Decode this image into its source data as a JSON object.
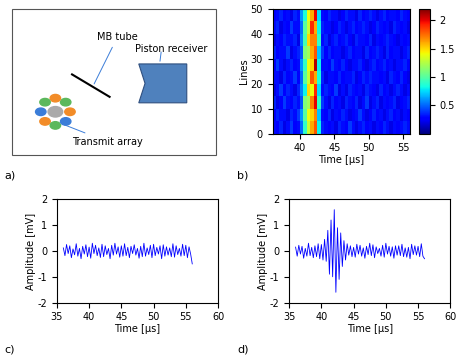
{
  "diagram": {
    "label": "a)",
    "texts": {
      "tube": "MB tube",
      "receiver": "Piston receiver",
      "array": "Transmit array"
    }
  },
  "chart_data": [
    {
      "type": "heatmap",
      "label": "b)",
      "xlabel": "Time [µs]",
      "ylabel": "Lines",
      "xlim": [
        36,
        56
      ],
      "xticks": [
        40,
        45,
        50,
        55
      ],
      "ylim": [
        0,
        50
      ],
      "yticks": [
        0,
        10,
        20,
        30,
        40,
        50
      ],
      "x_edges": [
        36,
        36.5,
        37,
        37.5,
        38,
        38.5,
        39,
        39.5,
        40,
        40.5,
        41,
        41.5,
        42,
        42.5,
        43,
        43.5,
        44,
        44.5,
        45,
        45.5,
        46,
        46.5,
        47,
        47.5,
        48,
        48.5,
        49,
        49.5,
        50,
        50.5,
        51,
        51.5,
        52,
        52.5,
        53,
        53.5,
        54,
        54.5,
        55,
        55.5,
        56
      ],
      "y_edges": [
        0,
        5,
        10,
        15,
        20,
        25,
        30,
        35,
        40,
        45,
        50
      ],
      "cells": [
        [
          0.3,
          0.25,
          0.35,
          0.2,
          0.3,
          0.4,
          0.25,
          0.3,
          0.5,
          0.9,
          1.3,
          1.6,
          1.8,
          0.8,
          0.35,
          0.3,
          0.25,
          0.3,
          0.2,
          0.35,
          0.3,
          0.25,
          0.4,
          0.3,
          0.2,
          0.3,
          0.35,
          0.25,
          0.3,
          0.2,
          0.3,
          0.25,
          0.35,
          0.3,
          0.2,
          0.3,
          0.25,
          0.3,
          0.35,
          0.3
        ],
        [
          0.25,
          0.35,
          0.3,
          0.3,
          0.2,
          0.35,
          0.3,
          0.4,
          0.6,
          1.0,
          1.4,
          1.5,
          1.7,
          0.7,
          0.3,
          0.25,
          0.35,
          0.2,
          0.3,
          0.25,
          0.35,
          0.3,
          0.2,
          0.25,
          0.3,
          0.4,
          0.3,
          0.2,
          0.25,
          0.35,
          0.25,
          0.3,
          0.2,
          0.3,
          0.35,
          0.25,
          0.3,
          0.2,
          0.3,
          0.25
        ],
        [
          0.35,
          0.2,
          0.25,
          0.4,
          0.3,
          0.25,
          0.35,
          0.3,
          0.45,
          1.1,
          1.2,
          1.7,
          2.0,
          0.9,
          0.4,
          0.3,
          0.2,
          0.35,
          0.25,
          0.3,
          0.2,
          0.35,
          0.3,
          0.25,
          0.35,
          0.2,
          0.3,
          0.4,
          0.2,
          0.3,
          0.35,
          0.2,
          0.3,
          0.25,
          0.3,
          0.35,
          0.2,
          0.25,
          0.3,
          0.35
        ],
        [
          0.2,
          0.3,
          0.4,
          0.25,
          0.35,
          0.3,
          0.2,
          0.35,
          0.55,
          0.8,
          1.5,
          1.4,
          1.9,
          0.75,
          0.3,
          0.35,
          0.3,
          0.25,
          0.4,
          0.2,
          0.3,
          0.2,
          0.35,
          0.3,
          0.25,
          0.3,
          0.2,
          0.35,
          0.3,
          0.25,
          0.2,
          0.35,
          0.25,
          0.3,
          0.2,
          0.3,
          0.35,
          0.3,
          0.2,
          0.3
        ],
        [
          0.3,
          0.3,
          0.2,
          0.35,
          0.25,
          0.3,
          0.4,
          0.25,
          0.5,
          1.0,
          1.3,
          1.8,
          1.6,
          0.85,
          0.35,
          0.2,
          0.3,
          0.3,
          0.25,
          0.35,
          0.25,
          0.3,
          0.3,
          0.35,
          0.2,
          0.25,
          0.35,
          0.3,
          0.35,
          0.3,
          0.3,
          0.25,
          0.3,
          0.2,
          0.35,
          0.3,
          0.25,
          0.35,
          0.25,
          0.2
        ],
        [
          0.25,
          0.4,
          0.3,
          0.2,
          0.3,
          0.35,
          0.25,
          0.3,
          0.6,
          0.9,
          1.4,
          1.5,
          2.1,
          0.8,
          0.3,
          0.3,
          0.25,
          0.4,
          0.3,
          0.25,
          0.35,
          0.25,
          0.2,
          0.3,
          0.3,
          0.35,
          0.25,
          0.2,
          0.3,
          0.35,
          0.25,
          0.3,
          0.35,
          0.25,
          0.3,
          0.2,
          0.3,
          0.3,
          0.35,
          0.25
        ],
        [
          0.35,
          0.25,
          0.3,
          0.3,
          0.4,
          0.2,
          0.3,
          0.35,
          0.45,
          1.1,
          1.2,
          1.6,
          1.8,
          0.7,
          0.4,
          0.25,
          0.35,
          0.25,
          0.3,
          0.3,
          0.2,
          0.3,
          0.35,
          0.25,
          0.3,
          0.3,
          0.2,
          0.35,
          0.25,
          0.3,
          0.35,
          0.3,
          0.2,
          0.35,
          0.25,
          0.3,
          0.3,
          0.2,
          0.3,
          0.35
        ],
        [
          0.2,
          0.3,
          0.25,
          0.35,
          0.3,
          0.3,
          0.35,
          0.2,
          0.55,
          0.95,
          1.5,
          1.7,
          1.7,
          0.9,
          0.3,
          0.35,
          0.2,
          0.3,
          0.35,
          0.25,
          0.3,
          0.35,
          0.25,
          0.2,
          0.35,
          0.3,
          0.3,
          0.25,
          0.35,
          0.2,
          0.3,
          0.25,
          0.3,
          0.35,
          0.3,
          0.25,
          0.2,
          0.3,
          0.25,
          0.3
        ],
        [
          0.3,
          0.35,
          0.2,
          0.3,
          0.25,
          0.4,
          0.3,
          0.3,
          0.5,
          1.0,
          1.3,
          1.9,
          1.6,
          0.8,
          0.35,
          0.3,
          0.3,
          0.2,
          0.25,
          0.35,
          0.3,
          0.2,
          0.3,
          0.35,
          0.25,
          0.3,
          0.35,
          0.3,
          0.2,
          0.25,
          0.35,
          0.3,
          0.25,
          0.3,
          0.2,
          0.35,
          0.3,
          0.25,
          0.3,
          0.2
        ],
        [
          0.25,
          0.3,
          0.35,
          0.25,
          0.3,
          0.2,
          0.35,
          0.3,
          0.6,
          0.85,
          1.4,
          1.6,
          2.0,
          0.75,
          0.3,
          0.25,
          0.35,
          0.3,
          0.3,
          0.2,
          0.25,
          0.35,
          0.3,
          0.3,
          0.2,
          0.35,
          0.25,
          0.3,
          0.35,
          0.3,
          0.2,
          0.3,
          0.35,
          0.25,
          0.3,
          0.3,
          0.25,
          0.35,
          0.3,
          0.25
        ]
      ],
      "colorbar_range": [
        0,
        2.2
      ],
      "colorbar_ticks": [
        0.5,
        1,
        1.5,
        2
      ]
    },
    {
      "type": "line",
      "label": "c)",
      "xlabel": "Time [µs]",
      "ylabel": "Amplitude [mV]",
      "xlim": [
        35,
        60
      ],
      "xticks": [
        35,
        40,
        45,
        50,
        55,
        60
      ],
      "ylim": [
        -2,
        2
      ],
      "yticks": [
        -2,
        -1,
        0,
        1,
        2
      ],
      "color": "#0000ff",
      "x": [
        36,
        36.25,
        36.5,
        36.75,
        37,
        37.25,
        37.5,
        37.75,
        38,
        38.25,
        38.5,
        38.75,
        39,
        39.25,
        39.5,
        39.75,
        40,
        40.25,
        40.5,
        40.75,
        41,
        41.25,
        41.5,
        41.75,
        42,
        42.25,
        42.5,
        42.75,
        43,
        43.25,
        43.5,
        43.75,
        44,
        44.25,
        44.5,
        44.75,
        45,
        45.25,
        45.5,
        45.75,
        46,
        46.25,
        46.5,
        46.75,
        47,
        47.25,
        47.5,
        47.75,
        48,
        48.25,
        48.5,
        48.75,
        49,
        49.25,
        49.5,
        49.75,
        50,
        50.25,
        50.5,
        50.75,
        51,
        51.25,
        51.5,
        51.75,
        52,
        52.25,
        52.5,
        52.75,
        53,
        53.25,
        53.5,
        53.75,
        54,
        54.25,
        54.5,
        54.75,
        55,
        55.25,
        55.5,
        55.75,
        56
      ],
      "values": [
        0.12,
        -0.18,
        0.25,
        -0.1,
        0.2,
        -0.26,
        0.08,
        -0.15,
        0.28,
        -0.2,
        0.1,
        -0.3,
        0.18,
        -0.12,
        0.24,
        -0.22,
        0.15,
        -0.28,
        0.3,
        -0.1,
        0.22,
        -0.18,
        0.12,
        -0.25,
        0.26,
        -0.22,
        0.2,
        -0.14,
        0.1,
        -0.3,
        0.22,
        -0.16,
        0.3,
        -0.12,
        0.16,
        -0.24,
        0.2,
        -0.2,
        0.28,
        -0.18,
        0.14,
        -0.26,
        0.18,
        -0.1,
        0.24,
        -0.16,
        0.1,
        -0.28,
        0.18,
        -0.22,
        0.3,
        -0.2,
        0.12,
        -0.14,
        0.22,
        -0.26,
        0.26,
        -0.18,
        0.14,
        -0.12,
        0.2,
        -0.3,
        0.24,
        -0.2,
        0.16,
        -0.16,
        0.12,
        -0.22,
        0.28,
        -0.24,
        0.2,
        -0.14,
        0.1,
        -0.2,
        0.26,
        -0.18,
        0.22,
        -0.26,
        0.16,
        -0.12,
        -0.5
      ]
    },
    {
      "type": "line",
      "label": "d)",
      "xlabel": "Time [µs]",
      "ylabel": "Amplitude [mV]",
      "xlim": [
        35,
        60
      ],
      "xticks": [
        35,
        40,
        45,
        50,
        55,
        60
      ],
      "ylim": [
        -2,
        2
      ],
      "yticks": [
        -2,
        -1,
        0,
        1,
        2
      ],
      "color": "#0000ff",
      "x": [
        36,
        36.25,
        36.5,
        36.75,
        37,
        37.25,
        37.5,
        37.75,
        38,
        38.25,
        38.5,
        38.75,
        39,
        39.25,
        39.5,
        39.75,
        40,
        40.25,
        40.5,
        40.75,
        41,
        41.25,
        41.5,
        41.75,
        42,
        42.25,
        42.5,
        42.75,
        43,
        43.25,
        43.5,
        43.75,
        44,
        44.25,
        44.5,
        44.75,
        45,
        45.25,
        45.5,
        45.75,
        46,
        46.25,
        46.5,
        46.75,
        47,
        47.25,
        47.5,
        47.75,
        48,
        48.25,
        48.5,
        48.75,
        49,
        49.25,
        49.5,
        49.75,
        50,
        50.25,
        50.5,
        50.75,
        51,
        51.25,
        51.5,
        51.75,
        52,
        52.25,
        52.5,
        52.75,
        53,
        53.25,
        53.5,
        53.75,
        54,
        54.25,
        54.5,
        54.75,
        55,
        55.25,
        55.5,
        55.75,
        56
      ],
      "values": [
        0.15,
        -0.2,
        0.22,
        -0.12,
        0.18,
        -0.28,
        0.1,
        -0.2,
        0.3,
        -0.18,
        0.14,
        -0.26,
        0.2,
        -0.22,
        0.28,
        -0.3,
        0.25,
        -0.35,
        0.45,
        -0.4,
        0.8,
        -0.9,
        1.2,
        -1.0,
        1.6,
        -1.6,
        0.9,
        -1.1,
        0.7,
        -0.6,
        0.4,
        -0.35,
        0.28,
        -0.16,
        0.2,
        -0.22,
        0.14,
        -0.24,
        0.26,
        -0.12,
        0.22,
        -0.2,
        0.12,
        -0.28,
        0.18,
        -0.14,
        0.3,
        -0.18,
        0.24,
        -0.26,
        0.16,
        -0.1,
        0.1,
        -0.2,
        0.22,
        -0.24,
        0.3,
        -0.12,
        0.18,
        -0.2,
        0.16,
        -0.28,
        0.2,
        -0.16,
        0.2,
        -0.18,
        0.26,
        -0.22,
        0.12,
        -0.24,
        0.14,
        -0.3,
        0.26,
        -0.14,
        0.2,
        -0.16,
        0.18,
        -0.22,
        0.28,
        -0.2,
        -0.3
      ]
    }
  ]
}
